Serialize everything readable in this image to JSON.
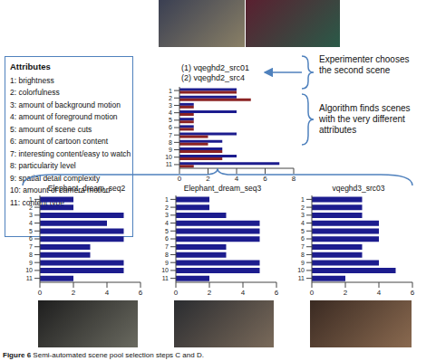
{
  "attributes": {
    "title": "Attributes",
    "items": [
      "1: brightness",
      "2: colorfulness",
      "3: amount of background motion",
      "4: amount of foreground motion",
      "5: amount of scene cuts",
      "6: amount of cartoon content",
      "7: interesting content/easy to watch",
      "8: particularity level",
      "9: spatial detail complexity",
      "10: amount of camera motion",
      "11: content type"
    ]
  },
  "annotations": [
    "Experimenter chooses the second scene",
    "Algorithm finds scenes with the very different attributes"
  ],
  "caption": {
    "label": "Figure 6",
    "text": "Semi-automated scene pool selection steps C and D."
  },
  "chart_data": [
    {
      "type": "bar",
      "orientation": "horizontal",
      "categories": [
        "1",
        "2",
        "3",
        "4",
        "5",
        "6",
        "7",
        "8",
        "9",
        "10",
        "11"
      ],
      "series": [
        {
          "name": "(1) vqeghd2_src01",
          "color": "#1c1c8e",
          "values": [
            4,
            4,
            1,
            4,
            1,
            1,
            4,
            3,
            3,
            4,
            7
          ]
        },
        {
          "name": "(2) vqeghd2_src4",
          "color": "#8b2323",
          "values": [
            4,
            5,
            1,
            1,
            1,
            1,
            2,
            2,
            3,
            3,
            1
          ]
        }
      ],
      "xlim": [
        0,
        8
      ],
      "xticks": [
        0,
        2,
        4,
        6,
        8
      ]
    },
    {
      "type": "bar",
      "orientation": "horizontal",
      "title": "Elephant_dream_seq2",
      "categories": [
        "1",
        "2",
        "3",
        "4",
        "5",
        "6",
        "7",
        "8",
        "9",
        "10",
        "11"
      ],
      "values": [
        2,
        2,
        5,
        4,
        5,
        5,
        3,
        3,
        5,
        5,
        2
      ],
      "color": "#1c1c8e",
      "xlim": [
        0,
        6
      ],
      "xticks": [
        0,
        2,
        4,
        6
      ]
    },
    {
      "type": "bar",
      "orientation": "horizontal",
      "title": "Elephant_dream_seq3",
      "categories": [
        "1",
        "2",
        "3",
        "4",
        "5",
        "6",
        "7",
        "8",
        "9",
        "10",
        "11"
      ],
      "values": [
        2,
        2,
        3,
        5,
        5,
        5,
        3,
        3,
        5,
        5,
        2
      ],
      "color": "#1c1c8e",
      "xlim": [
        0,
        6
      ],
      "xticks": [
        0,
        2,
        4,
        6
      ]
    },
    {
      "type": "bar",
      "orientation": "horizontal",
      "title": "vqeghd3_src03",
      "categories": [
        "1",
        "2",
        "3",
        "4",
        "5",
        "6",
        "7",
        "8",
        "9",
        "10",
        "11"
      ],
      "values": [
        3,
        3,
        3,
        4,
        4,
        4,
        3,
        3,
        4,
        5,
        2
      ],
      "color": "#1c1c8e",
      "xlim": [
        0,
        6
      ],
      "xticks": [
        0,
        2,
        4,
        6
      ]
    }
  ]
}
